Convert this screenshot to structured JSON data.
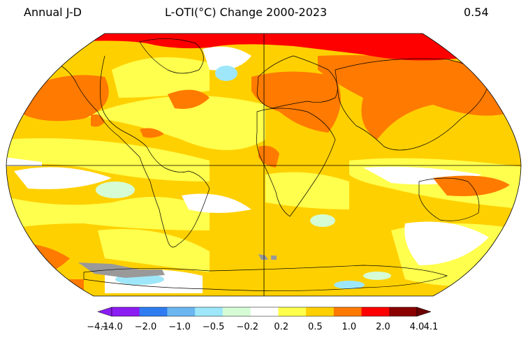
{
  "header": {
    "left_label": "Annual J-D",
    "title": "L-OTI(°C) Change 2000-2023",
    "global_mean": "0.54"
  },
  "colorbar": {
    "ticks": [
      "−4.1",
      "−4.0",
      "−2.0",
      "−1.0",
      "−0.5",
      "−0.2",
      "0.2",
      "0.5",
      "1.0",
      "2.0",
      "4.0",
      "4.1"
    ],
    "colors": [
      "#8b1cf2",
      "#2e7cf0",
      "#6ab6f0",
      "#9ee7fa",
      "#d5fcd5",
      "#ffffff",
      "#ffff4d",
      "#ffd000",
      "#ff7a00",
      "#ff0000",
      "#8a0000"
    ],
    "under_color": "#8b1cf2",
    "over_color": "#6b0000"
  },
  "map": {
    "projection": "Robinson",
    "missing_color": "#999999"
  }
}
